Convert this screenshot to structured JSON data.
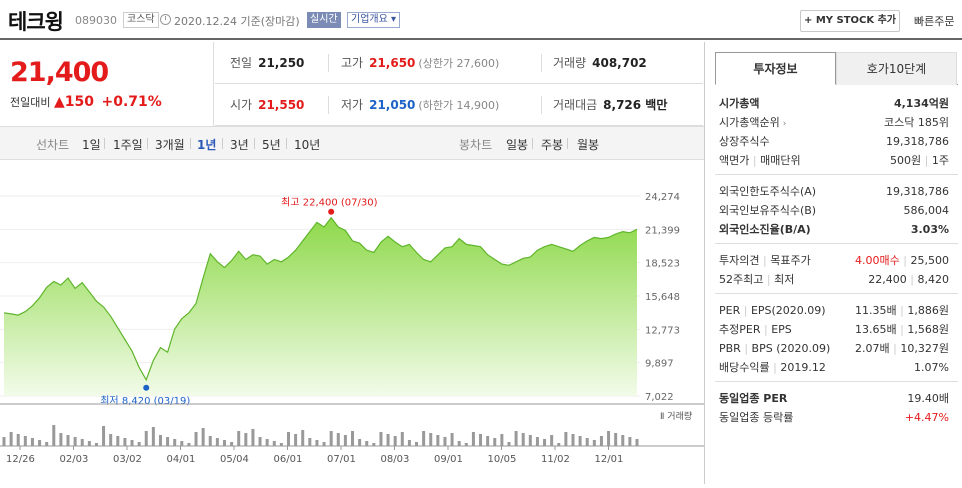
{
  "header": {
    "name": "테크윙",
    "code": "089030",
    "market": "코스닥",
    "date": "2020.12.24 기준(장마감)",
    "live": "실시간",
    "summary": "기업개요",
    "summary_caret": "▾",
    "mystock": "+ MY STOCK 추가",
    "fast_order": "빠른주문"
  },
  "price": {
    "current": "21,400",
    "change_label": "전일대비",
    "change_arrow": "▲",
    "change": "150",
    "change_pct": "+0.71%"
  },
  "stats": {
    "prev": {
      "k": "전일",
      "v": "21,250"
    },
    "high": {
      "k": "고가",
      "v": "21,650",
      "s": "(상한가 27,600)"
    },
    "vol": {
      "k": "거래량",
      "v": "408,702"
    },
    "open": {
      "k": "시가",
      "v": "21,550"
    },
    "low": {
      "k": "저가",
      "v": "21,050",
      "s": "(하한가 14,900)"
    },
    "amt": {
      "k": "거래대금",
      "v": "8,726 백만"
    }
  },
  "periods": {
    "line_label": "선차트",
    "line": [
      "1일",
      "1주일",
      "3개월",
      "1년",
      "3년",
      "5년",
      "10년"
    ],
    "active": "1년",
    "candle_label": "봉차트",
    "candle": [
      "일봉",
      "주봉",
      "월봉"
    ]
  },
  "chart_data": {
    "type": "area",
    "y_ticks": [
      "24,274",
      "21,399",
      "18,523",
      "15,648",
      "12,773",
      "9,897",
      "7,022"
    ],
    "ylim": [
      7022,
      24274
    ],
    "x_labels": [
      "12/26",
      "02/03",
      "03/02",
      "04/01",
      "05/04",
      "06/01",
      "07/01",
      "08/03",
      "09/01",
      "10/05",
      "11/02",
      "12/01"
    ],
    "max_label": "최고 22,400 (07/30)",
    "min_label": "최저 8,420 (03/19)",
    "volume_label": "거래량",
    "values": [
      14200,
      14100,
      14000,
      14300,
      14800,
      15500,
      16400,
      16900,
      16600,
      17200,
      16300,
      16800,
      16000,
      15200,
      14700,
      13900,
      12900,
      11900,
      10900,
      9500,
      8420,
      10100,
      11200,
      10800,
      12800,
      13700,
      14200,
      15000,
      17200,
      19300,
      18600,
      18100,
      18700,
      19500,
      18800,
      19200,
      19100,
      18400,
      18800,
      18600,
      19000,
      19600,
      20400,
      21200,
      22000,
      21600,
      22400,
      21600,
      21300,
      20400,
      20200,
      19600,
      19400,
      20300,
      20800,
      20300,
      19900,
      20100,
      19400,
      18800,
      18600,
      19200,
      19800,
      19900,
      20600,
      20100,
      20000,
      19900,
      19200,
      18800,
      18400,
      18300,
      18600,
      18900,
      19000,
      19600,
      19900,
      20100,
      19900,
      19700,
      19500,
      20000,
      20400,
      20700,
      20600,
      20700,
      21000,
      21200,
      21100,
      21400
    ]
  },
  "right": {
    "tab_active": "투자정보",
    "tab_other": "호가10단계",
    "rows1": [
      {
        "k": "시가총액",
        "v": "4,134억원",
        "bold": true
      },
      {
        "k": "시가총액순위",
        "v": "코스닥 185위",
        "arrow": "›"
      },
      {
        "k": "상장주식수",
        "v": "19,318,786"
      },
      {
        "k": "액면가",
        "k2": "매매단위",
        "v": "500원",
        "v2": "1주"
      }
    ],
    "rows2": [
      {
        "k": "외국인한도주식수(A)",
        "v": "19,318,786"
      },
      {
        "k": "외국인보유주식수(B)",
        "v": "586,004"
      },
      {
        "k": "외국인소진율(B/A)",
        "v": "3.03%",
        "bold": true
      }
    ],
    "rows3": [
      {
        "k": "투자의견",
        "k2": "목표주가",
        "v": "4.00매수",
        "v2": "25,500"
      },
      {
        "k": "52주최고",
        "k2": "최저",
        "v": "22,400",
        "v2": "8,420"
      }
    ],
    "rows4": [
      {
        "k": "PER",
        "k2": "EPS(2020.09)",
        "v": "11.35배",
        "v2": "1,886원"
      },
      {
        "k": "추정PER",
        "k2": "EPS",
        "v": "13.65배",
        "v2": "1,568원"
      },
      {
        "k": "PBR",
        "k2": "BPS (2020.09)",
        "v": "2.07배",
        "v2": "10,327원"
      },
      {
        "k": "배당수익률",
        "k2": "2019.12",
        "v": "1.07%"
      }
    ],
    "rows5": [
      {
        "k": "동일업종 PER",
        "v": "19.40배"
      },
      {
        "k": "동일업종 등락률",
        "v": "+4.47%"
      }
    ]
  }
}
